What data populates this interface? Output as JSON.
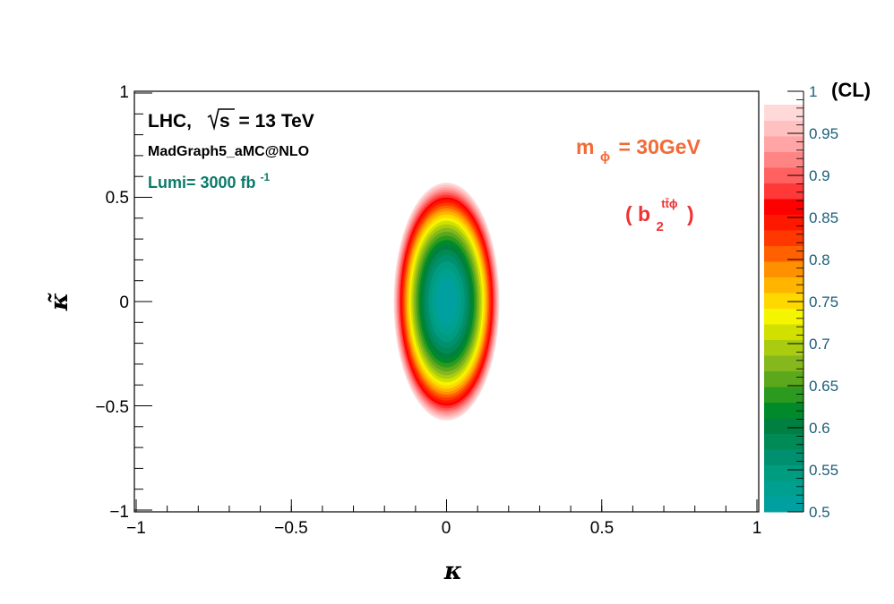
{
  "chart_data": {
    "type": "heatmap",
    "title": "",
    "xlabel": "κ",
    "ylabel": "κ̃",
    "xlim": [
      -1,
      1
    ],
    "ylim": [
      -1,
      1
    ],
    "x_ticks": [
      -1,
      -0.5,
      0,
      0.5,
      1
    ],
    "x_tick_labels": [
      "−1",
      "−0.5",
      "0",
      "0.5",
      "1"
    ],
    "y_ticks": [
      -1,
      -0.5,
      0,
      0.5,
      1
    ],
    "y_tick_labels": [
      "−1",
      "−0.5",
      "0",
      "0.5",
      "1"
    ],
    "grid": false,
    "colorbar": {
      "title": "(CL)",
      "range": [
        0.5,
        1
      ],
      "tick_values": [
        0.5,
        0.55,
        0.6,
        0.65,
        0.7,
        0.75,
        0.8,
        0.85,
        0.9,
        0.95,
        1
      ],
      "tick_labels": [
        "0.5",
        "0.55",
        "0.6",
        "0.65",
        "0.7",
        "0.75",
        "0.8",
        "0.85",
        "0.9",
        "0.95",
        "1"
      ],
      "levels": 20,
      "colors": [
        "#00a0a0",
        "#00a090",
        "#009c80",
        "#009070",
        "#008a55",
        "#008040",
        "#008a2a",
        "#2b9a1e",
        "#5ca81c",
        "#85b81c",
        "#aacc10",
        "#d2e000",
        "#f5f500",
        "#ffd800",
        "#ffb400",
        "#ff9000",
        "#ff6000",
        "#ff3800",
        "#ff1800",
        "#ff0000",
        "#ff3838",
        "#ff6060",
        "#ff8585",
        "#ffa5a5",
        "#ffc0c0",
        "#ffd8d8"
      ]
    },
    "contour": {
      "center": [
        0,
        0
      ],
      "confidence_levels": [
        0.5,
        0.98
      ],
      "semi_axis_kappa": 0.17,
      "semi_axis_kappa_tilde": 0.57
    },
    "annotations": {
      "experiment": "LHC,",
      "energy_sqrt": "s",
      "energy_value": "= 13 TeV",
      "generator": "MadGraph5_aMC@NLO",
      "lumi_text": "Lumi= 3000 fb",
      "lumi_exp": "-1",
      "mass_main": "m",
      "mass_sub": "ϕ",
      "mass_value": "= 30GeV",
      "coupling_open": "( b",
      "coupling_sub": "2",
      "coupling_sup": "tt̄ϕ",
      "coupling_close": ")"
    },
    "colors": {
      "lumi": "#0b7a6a",
      "mass": "#f26a35",
      "coupling": "#ee3333",
      "zaxis_labels": "#1a5f7a"
    }
  }
}
